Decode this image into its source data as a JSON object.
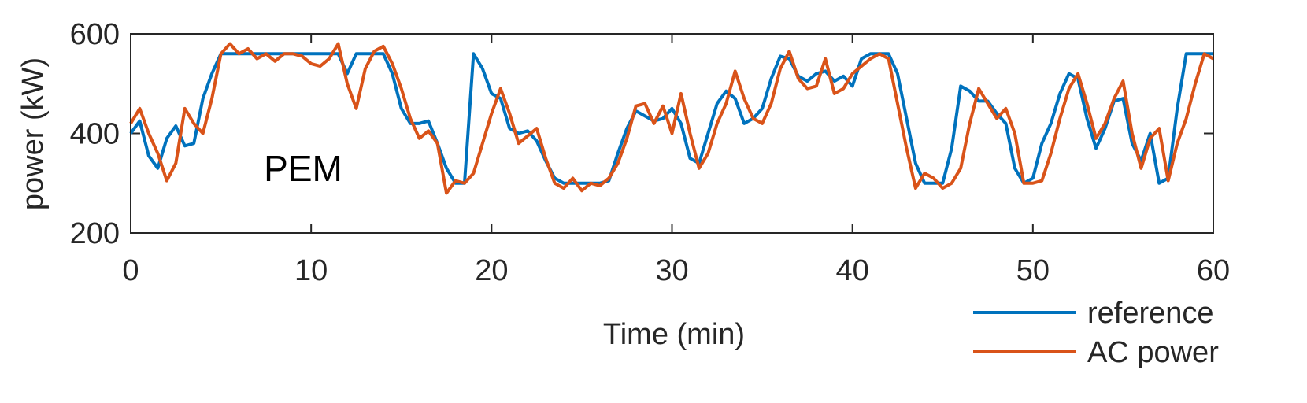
{
  "chart_data": {
    "type": "line",
    "xlabel": "Time (min)",
    "ylabel": "power (kW)",
    "annotation": "PEM",
    "x": [
      0,
      0.5,
      1,
      1.5,
      2,
      2.5,
      3,
      3.5,
      4,
      4.5,
      5,
      5.5,
      6,
      6.5,
      7,
      7.5,
      8,
      8.5,
      9,
      9.5,
      10,
      10.5,
      11,
      11.5,
      12,
      12.5,
      13,
      13.5,
      14,
      14.5,
      15,
      15.5,
      16,
      16.5,
      17,
      17.5,
      18,
      18.5,
      19,
      19.5,
      20,
      20.5,
      21,
      21.5,
      22,
      22.5,
      23,
      23.5,
      24,
      24.5,
      25,
      25.5,
      26,
      26.5,
      27,
      27.5,
      28,
      28.5,
      29,
      29.5,
      30,
      30.5,
      31,
      31.5,
      32,
      32.5,
      33,
      33.5,
      34,
      34.5,
      35,
      35.5,
      36,
      36.5,
      37,
      37.5,
      38,
      38.5,
      39,
      39.5,
      40,
      40.5,
      41,
      41.5,
      42,
      42.5,
      43,
      43.5,
      44,
      44.5,
      45,
      45.5,
      46,
      46.5,
      47,
      47.5,
      48,
      48.5,
      49,
      49.5,
      50,
      50.5,
      51,
      51.5,
      52,
      52.5,
      53,
      53.5,
      54,
      54.5,
      55,
      55.5,
      56,
      56.5,
      57,
      57.5,
      58,
      58.5,
      59,
      59.5,
      60
    ],
    "series": [
      {
        "name": "reference",
        "color": "#0072bd",
        "values": [
          400,
          425,
          355,
          330,
          390,
          415,
          375,
          380,
          470,
          520,
          560,
          560,
          560,
          560,
          560,
          560,
          560,
          560,
          560,
          560,
          560,
          560,
          560,
          560,
          520,
          560,
          560,
          560,
          560,
          520,
          450,
          420,
          420,
          425,
          380,
          330,
          300,
          300,
          560,
          530,
          480,
          470,
          410,
          400,
          405,
          385,
          345,
          310,
          300,
          300,
          300,
          300,
          300,
          305,
          360,
          410,
          445,
          435,
          425,
          430,
          450,
          420,
          350,
          340,
          400,
          460,
          485,
          470,
          420,
          430,
          450,
          510,
          555,
          550,
          515,
          505,
          520,
          525,
          505,
          515,
          495,
          550,
          560,
          560,
          560,
          520,
          430,
          340,
          300,
          300,
          300,
          370,
          495,
          485,
          465,
          465,
          440,
          420,
          330,
          300,
          310,
          380,
          420,
          480,
          520,
          510,
          430,
          370,
          410,
          465,
          470,
          380,
          345,
          400,
          300,
          310,
          450,
          560,
          560,
          560,
          560
        ]
      },
      {
        "name": "AC power",
        "color": "#d95319",
        "values": [
          420,
          450,
          400,
          360,
          305,
          340,
          450,
          420,
          400,
          470,
          560,
          580,
          560,
          570,
          550,
          560,
          545,
          560,
          560,
          555,
          540,
          535,
          550,
          580,
          500,
          450,
          530,
          565,
          575,
          540,
          490,
          430,
          390,
          405,
          380,
          280,
          305,
          300,
          320,
          380,
          440,
          490,
          440,
          380,
          395,
          410,
          350,
          300,
          290,
          310,
          285,
          300,
          295,
          310,
          340,
          390,
          455,
          460,
          420,
          455,
          400,
          480,
          400,
          330,
          360,
          420,
          460,
          525,
          470,
          430,
          420,
          460,
          530,
          565,
          510,
          490,
          495,
          550,
          480,
          490,
          520,
          535,
          550,
          560,
          550,
          460,
          370,
          290,
          320,
          310,
          290,
          300,
          330,
          420,
          490,
          460,
          430,
          450,
          400,
          300,
          300,
          305,
          360,
          430,
          490,
          520,
          460,
          390,
          420,
          470,
          505,
          400,
          330,
          390,
          410,
          305,
          380,
          430,
          500,
          560,
          550
        ]
      }
    ],
    "xlim": [
      0,
      60
    ],
    "xticks": [
      0,
      10,
      20,
      30,
      40,
      50,
      60
    ],
    "ylim": [
      200,
      600
    ],
    "yticks": [
      200,
      400,
      600
    ],
    "legend": "southeastoutside"
  }
}
